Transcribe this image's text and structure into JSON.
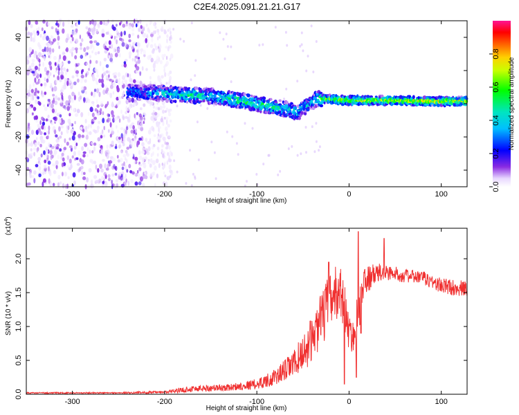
{
  "title": "C2E4.2025.091.21.21.G17",
  "chart_data": [
    {
      "type": "heatmap",
      "xlabel": "Height of straight line (km)",
      "ylabel": "Frequency (Hz)",
      "xlim": [
        -350,
        128
      ],
      "ylim": [
        -50,
        50
      ],
      "xticks": [
        -300,
        -200,
        -100,
        0,
        100
      ],
      "yticks": [
        -40,
        -20,
        0,
        20,
        40
      ],
      "colorbar": {
        "label": "Normalized spectral amplitude",
        "range": [
          0,
          1
        ],
        "ticks": [
          "0.0",
          "0.2",
          "0.4",
          "0.6",
          "0.8"
        ],
        "tick_values": [
          0,
          0.2,
          0.4,
          0.6,
          0.8
        ],
        "colormap": "rainbow-white-low"
      },
      "ridge": {
        "description_points_x": [
          -240,
          -220,
          -200,
          -170,
          -140,
          -110,
          -90,
          -70,
          -55,
          -45,
          -35,
          -30,
          0,
          40,
          80,
          128
        ],
        "description_points_y": [
          7,
          7,
          6,
          5,
          4,
          1,
          -1,
          -3,
          -5,
          -1,
          3,
          3,
          2,
          2,
          1.5,
          1.5
        ],
        "amplitude": [
          0.25,
          0.3,
          0.4,
          0.45,
          0.45,
          0.5,
          0.5,
          0.45,
          0.4,
          0.35,
          0.4,
          0.6,
          0.7,
          0.7,
          0.75,
          0.7
        ]
      },
      "noise_region_x": [
        -350,
        -200
      ]
    },
    {
      "type": "line",
      "xlabel": "Height of straight line (km)",
      "ylabel": "SNR (10 * v/v)",
      "y_multiplier": "(x10",
      "y_multiplier_exp": "4",
      "y_multiplier_close": ")",
      "xlim": [
        -350,
        128
      ],
      "ylim": [
        0,
        2.45
      ],
      "xticks": [
        -300,
        -200,
        -100,
        0,
        100
      ],
      "yticks": [
        "0.0",
        "0.5",
        "1.0",
        "1.5",
        "2.0"
      ],
      "ytick_values": [
        0,
        0.5,
        1.0,
        1.5,
        2.0
      ],
      "color": "#f03030",
      "envelope": {
        "x": [
          -350,
          -250,
          -200,
          -170,
          -130,
          -100,
          -80,
          -60,
          -45,
          -30,
          -20,
          -10,
          -5,
          0,
          5,
          10,
          15,
          20,
          30,
          40,
          60,
          80,
          100,
          128
        ],
        "base": [
          0.02,
          0.02,
          0.03,
          0.08,
          0.1,
          0.15,
          0.25,
          0.45,
          0.7,
          1.1,
          1.4,
          1.55,
          1.3,
          0.9,
          0.85,
          1.2,
          1.6,
          1.7,
          1.78,
          1.8,
          1.75,
          1.72,
          1.6,
          1.55
        ],
        "amp": [
          0.01,
          0.01,
          0.02,
          0.05,
          0.05,
          0.08,
          0.12,
          0.2,
          0.3,
          0.4,
          0.45,
          0.4,
          0.35,
          0.25,
          0.25,
          0.35,
          0.25,
          0.2,
          0.15,
          0.12,
          0.1,
          0.1,
          0.12,
          0.12
        ]
      },
      "spikes": [
        {
          "x": 10,
          "y": 2.4
        },
        {
          "x": 8,
          "y": 0.25
        },
        {
          "x": 38,
          "y": 2.3
        },
        {
          "x": -22,
          "y": 1.95
        },
        {
          "x": -5,
          "y": 0.15
        },
        {
          "x": 13,
          "y": 0.9
        }
      ]
    }
  ]
}
